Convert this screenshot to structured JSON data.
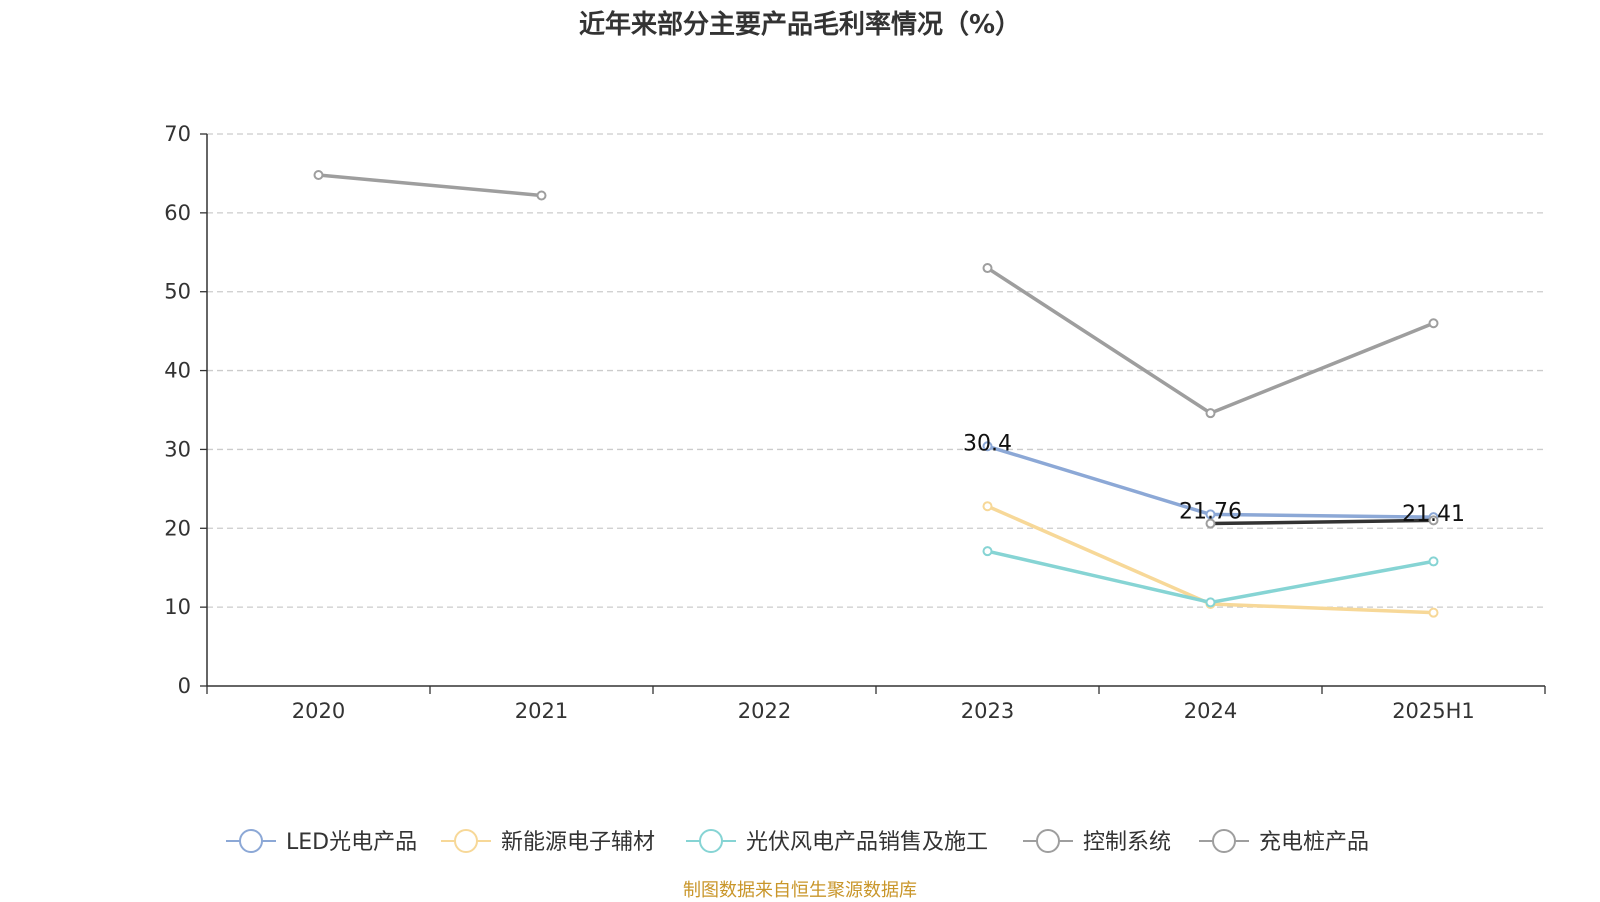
{
  "title": "近年来部分主要产品毛利率情况（%）",
  "source": "制图数据来自恒生聚源数据库",
  "chart_data": {
    "type": "line",
    "title": "近年来部分主要产品毛利率情况（%）",
    "categories": [
      "2020",
      "2021",
      "2022",
      "2023",
      "2024",
      "2025H1"
    ],
    "ylim": [
      0,
      70
    ],
    "yticks": [
      0,
      10,
      20,
      30,
      40,
      50,
      60,
      70
    ],
    "grid": true,
    "legend_position": "bottom",
    "series": [
      {
        "name": "LED光电产品",
        "color": "#8ca8d6",
        "values": [
          null,
          null,
          null,
          30.4,
          21.76,
          21.41
        ]
      },
      {
        "name": "新能源电子辅材",
        "color": "#f7d898",
        "values": [
          null,
          null,
          null,
          22.8,
          10.4,
          9.3
        ]
      },
      {
        "name": "光伏风电产品销售及施工",
        "color": "#86d4d4",
        "values": [
          null,
          null,
          null,
          17.1,
          10.6,
          15.8
        ]
      },
      {
        "name": "控制系统",
        "color": "#9e9e9e",
        "values": [
          64.8,
          62.2,
          null,
          53.0,
          34.6,
          46.0
        ]
      },
      {
        "name": "充电桩产品",
        "color": "#9e9e9e",
        "line_color": "#333333",
        "values": [
          null,
          null,
          null,
          null,
          20.6,
          21.0
        ]
      }
    ],
    "data_labels": [
      {
        "series": 0,
        "index": 3,
        "text": "30.4"
      },
      {
        "series": 0,
        "index": 4,
        "text": "21.76"
      },
      {
        "series": 0,
        "index": 5,
        "text": "21.41"
      }
    ]
  }
}
